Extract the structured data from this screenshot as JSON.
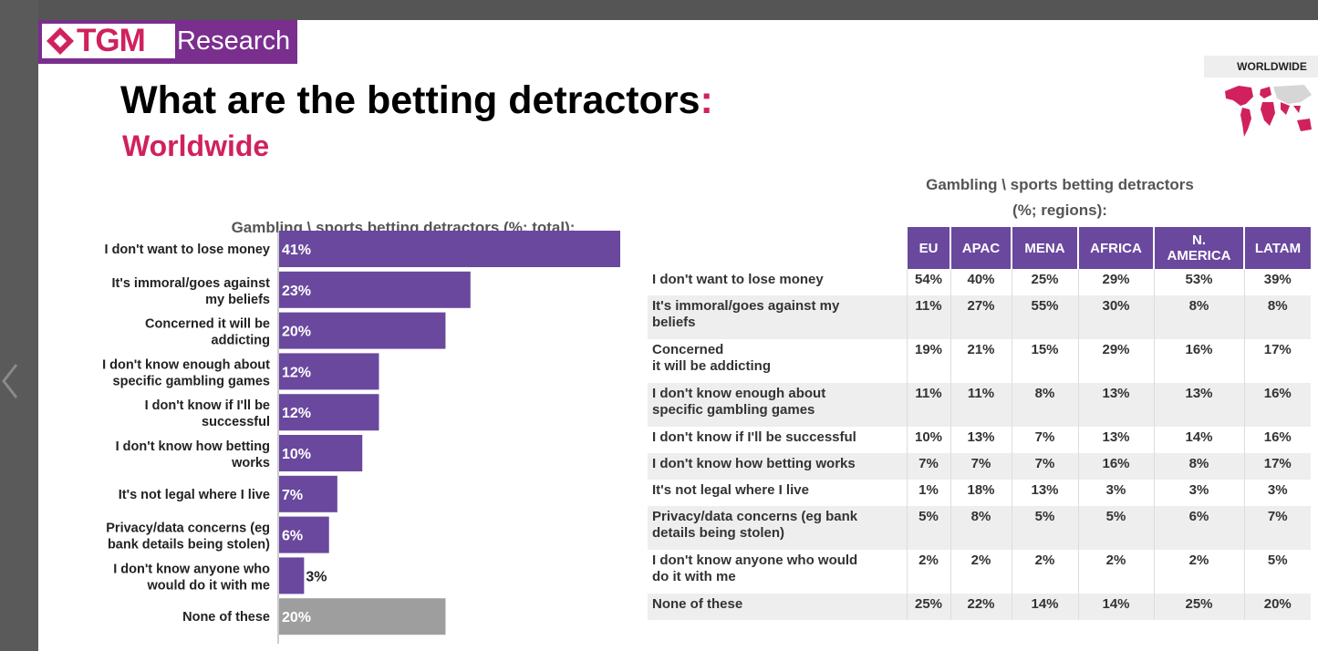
{
  "logo": {
    "tgm": "TGM",
    "research": "Research"
  },
  "header": {
    "title": "What are the betting detractors",
    "title_colon": ":",
    "subtitle": "Worldwide",
    "badge": "WORLDWIDE"
  },
  "colors": {
    "bar": "#6a489e",
    "bar_none": "#9e9e9e",
    "accent": "#d0215e",
    "brand": "#7a2e8e"
  },
  "chart_data": [
    {
      "type": "bar",
      "orientation": "horizontal",
      "title": "Gambling \\ sports betting detractors (%; total):",
      "categories": [
        "I don't want to lose money",
        "It's immoral/goes against my beliefs",
        "Concerned it will be addicting",
        "I don't know enough about specific gambling games",
        "I don't know if I'll be successful",
        "I don't know how betting works",
        "It's not legal where I live",
        "Privacy/data concerns (eg bank details being stolen)",
        "I don't know anyone who would do it with me",
        "None of these"
      ],
      "category_lines": [
        [
          "I don't want to lose money"
        ],
        [
          "It's immoral/goes against",
          "my beliefs"
        ],
        [
          "Concerned it will be",
          "addicting"
        ],
        [
          "I don't know enough about",
          "specific gambling games"
        ],
        [
          "I don't know if I'll be",
          "successful"
        ],
        [
          "I don't know how betting",
          "works"
        ],
        [
          "It's not legal where I live"
        ],
        [
          "Privacy/data concerns (eg",
          "bank details being stolen)"
        ],
        [
          "I don't know anyone who",
          "would do it with me"
        ],
        [
          "None of these"
        ]
      ],
      "values": [
        41,
        23,
        20,
        12,
        12,
        10,
        7,
        6,
        3,
        20
      ],
      "value_labels": [
        "41%",
        "23%",
        "20%",
        "12%",
        "12%",
        "10%",
        "7%",
        "6%",
        "3%",
        "20%"
      ],
      "xlim": [
        0,
        41
      ]
    },
    {
      "type": "table",
      "title_lines": [
        "Gambling \\ sports betting detractors",
        "(%; regions):"
      ],
      "columns": [
        [
          "EU"
        ],
        [
          "APAC"
        ],
        [
          "MENA"
        ],
        [
          "AFRICA"
        ],
        [
          "N.",
          "AMERICA"
        ],
        [
          "LATAM"
        ]
      ],
      "rows": [
        {
          "label": [
            "I don't want to lose money"
          ],
          "values": [
            "54%",
            "40%",
            "25%",
            "29%",
            "53%",
            "39%"
          ]
        },
        {
          "label": [
            "It's immoral/goes against my",
            "beliefs"
          ],
          "values": [
            "11%",
            "27%",
            "55%",
            "30%",
            "8%",
            "8%"
          ]
        },
        {
          "label": [
            "Concerned",
            "it will be addicting"
          ],
          "values": [
            "19%",
            "21%",
            "15%",
            "29%",
            "16%",
            "17%"
          ]
        },
        {
          "label": [
            "I don't know enough about",
            "specific gambling games"
          ],
          "values": [
            "11%",
            "11%",
            "8%",
            "13%",
            "13%",
            "16%"
          ]
        },
        {
          "label": [
            "I don't know if I'll be successful"
          ],
          "values": [
            "10%",
            "13%",
            "7%",
            "13%",
            "14%",
            "16%"
          ]
        },
        {
          "label": [
            "I don't know how betting works"
          ],
          "values": [
            "7%",
            "7%",
            "7%",
            "16%",
            "8%",
            "17%"
          ]
        },
        {
          "label": [
            "It's not legal where I live"
          ],
          "values": [
            "1%",
            "18%",
            "13%",
            "3%",
            "3%",
            "3%"
          ]
        },
        {
          "label": [
            "Privacy/data concerns (eg bank",
            "details being stolen)"
          ],
          "values": [
            "5%",
            "8%",
            "5%",
            "5%",
            "6%",
            "7%"
          ]
        },
        {
          "label": [
            "I don't know anyone who would",
            "do it with me"
          ],
          "values": [
            "2%",
            "2%",
            "2%",
            "2%",
            "2%",
            "5%"
          ]
        },
        {
          "label": [
            "None of these"
          ],
          "values": [
            "25%",
            "22%",
            "14%",
            "14%",
            "25%",
            "20%"
          ]
        }
      ]
    }
  ]
}
